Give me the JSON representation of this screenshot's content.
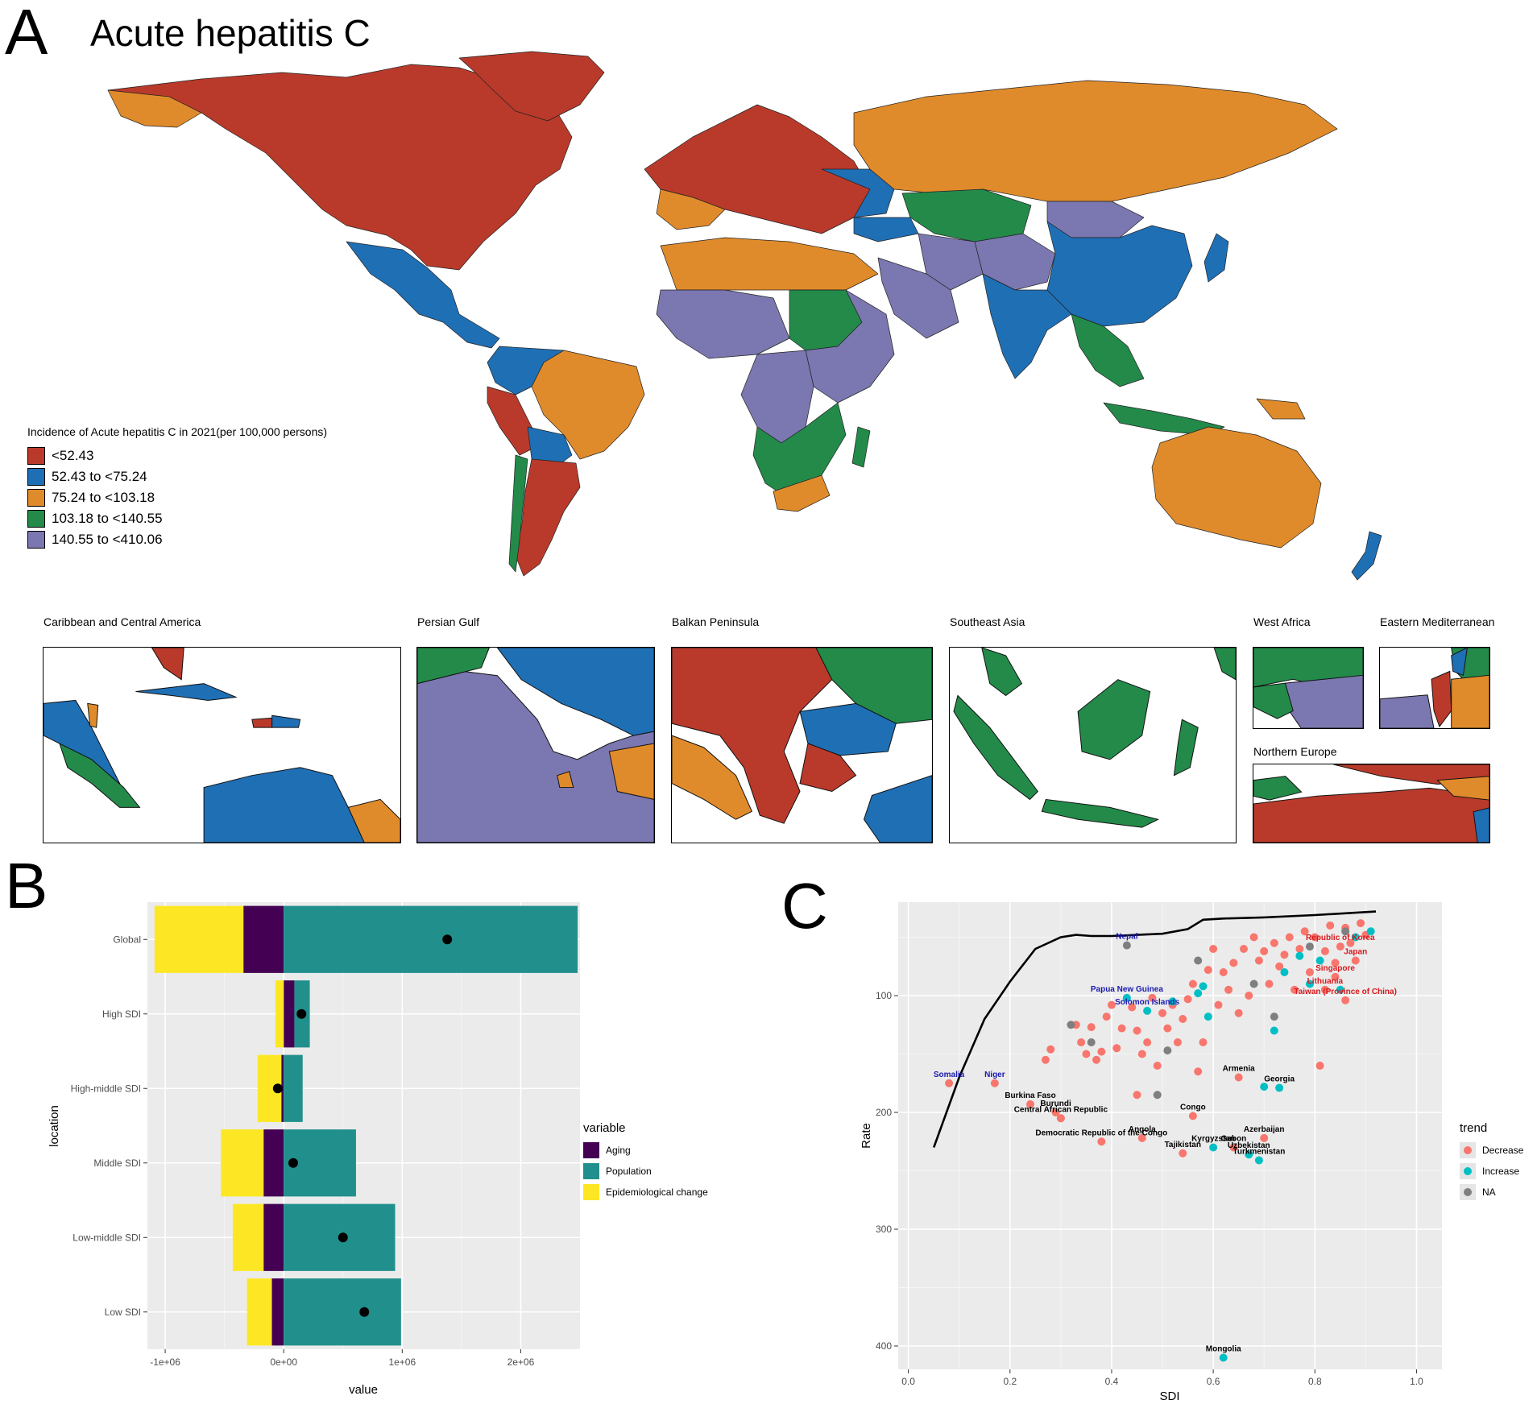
{
  "panel_a": {
    "letter": "A",
    "title": "Acute hepatitis C",
    "legend": {
      "title": "Incidence of Acute hepatitis C in 2021(per 100,000 persons)",
      "items": [
        {
          "label": "<52.43",
          "color": "#B93A2B"
        },
        {
          "label": "52.43 to <75.24",
          "color": "#1F6FB5"
        },
        {
          "label": "75.24 to <103.18",
          "color": "#E08B2B"
        },
        {
          "label": "103.18 to <140.55",
          "color": "#238A4A"
        },
        {
          "label": "140.55 to <410.06",
          "color": "#7B77B0"
        }
      ]
    },
    "insets": [
      {
        "title": "Caribbean and Central America"
      },
      {
        "title": "Persian Gulf"
      },
      {
        "title": "Balkan Peninsula"
      },
      {
        "title": "Southeast Asia"
      },
      {
        "title": "West Africa"
      },
      {
        "title": "Eastern Mediterranean"
      },
      {
        "title": "Northern Europe"
      }
    ]
  },
  "panel_b": {
    "letter": "B",
    "legend": {
      "title": "variable",
      "items": [
        {
          "label": "Aging",
          "color": "#440154"
        },
        {
          "label": "Population",
          "color": "#21908C"
        },
        {
          "label": "Epidemiological change",
          "color": "#FDE725"
        }
      ]
    }
  },
  "panel_c": {
    "letter": "C",
    "legend": {
      "title": "trend",
      "items": [
        {
          "label": "Decrease",
          "color": "#F8766D"
        },
        {
          "label": "Increase",
          "color": "#00BFC4"
        },
        {
          "label": "NA",
          "color": "#7F7F7F"
        }
      ]
    }
  },
  "chart_data": [
    {
      "type": "bar",
      "subtype": "stacked-horizontal-decomposition",
      "xlabel": "value",
      "ylabel": "location",
      "xlim": [
        -1150000,
        2500000
      ],
      "x_ticks": [
        -1000000,
        0,
        1000000,
        2000000
      ],
      "x_tick_labels": [
        "-1e+06",
        "0e+00",
        "1e+06",
        "2e+06"
      ],
      "categories": [
        "Global",
        "High SDI",
        "High-middle SDI",
        "Middle SDI",
        "Low-middle SDI",
        "Low SDI"
      ],
      "series": [
        {
          "name": "Aging",
          "values": [
            -340000,
            90000,
            -20000,
            -170000,
            -170000,
            -100000
          ]
        },
        {
          "name": "Epidemiological change",
          "values": [
            -750000,
            -70000,
            -200000,
            -360000,
            -260000,
            -210000
          ]
        },
        {
          "name": "Population",
          "values": [
            2480000,
            130000,
            160000,
            610000,
            940000,
            990000
          ]
        }
      ],
      "net_change": [
        1380000,
        150000,
        -50000,
        80000,
        500000,
        680000
      ],
      "grid": true,
      "legend_position": "right"
    },
    {
      "type": "scatter",
      "xlabel": "SDI",
      "ylabel": "Rate",
      "xlim": [
        -0.02,
        1.05
      ],
      "ylim": [
        420,
        20
      ],
      "x_ticks": [
        0.0,
        0.2,
        0.4,
        0.6,
        0.8,
        1.0
      ],
      "x_tick_labels": [
        "0.0",
        "0.2",
        "0.4",
        "0.6",
        "0.8",
        "1.0"
      ],
      "y_ticks": [
        100,
        200,
        300,
        400
      ],
      "y_tick_labels": [
        "100",
        "200",
        "300",
        "400"
      ],
      "y_reversed": true,
      "grid": true,
      "legend_position": "right",
      "expected_curve": {
        "x": [
          0.05,
          0.1,
          0.15,
          0.2,
          0.25,
          0.3,
          0.33,
          0.36,
          0.4,
          0.45,
          0.5,
          0.55,
          0.58,
          0.62,
          0.7,
          0.8,
          0.92
        ],
        "y": [
          230,
          170,
          120,
          88,
          60,
          50,
          48,
          49,
          49,
          48,
          47,
          43,
          35,
          34,
          33,
          31,
          28
        ]
      },
      "labeled_points": [
        {
          "label": "Somalia",
          "x": 0.08,
          "y": 175,
          "trend": "Decrease",
          "label_color": "#1A1AB0"
        },
        {
          "label": "Niger",
          "x": 0.17,
          "y": 175,
          "trend": "Decrease",
          "label_color": "#1A1AB0"
        },
        {
          "label": "Nepal",
          "x": 0.43,
          "y": 57,
          "trend": "NA",
          "label_color": "#1A1AB0"
        },
        {
          "label": "Papua New Guinea",
          "x": 0.43,
          "y": 102,
          "trend": "Increase",
          "label_color": "#1A1AB0"
        },
        {
          "label": "Solomon Islands",
          "x": 0.47,
          "y": 113,
          "trend": "Increase",
          "label_color": "#1A1AB0"
        },
        {
          "label": "Burkina Faso",
          "x": 0.24,
          "y": 193,
          "trend": "Decrease",
          "label_color": "#000000"
        },
        {
          "label": "Burundi",
          "x": 0.29,
          "y": 200,
          "trend": "Decrease",
          "label_color": "#000000"
        },
        {
          "label": "Central African Republic",
          "x": 0.3,
          "y": 205,
          "trend": "Decrease",
          "label_color": "#000000"
        },
        {
          "label": "Democratic Republic of the Congo",
          "x": 0.38,
          "y": 225,
          "trend": "Decrease",
          "label_color": "#000000"
        },
        {
          "label": "Angola",
          "x": 0.46,
          "y": 222,
          "trend": "Decrease",
          "label_color": "#000000"
        },
        {
          "label": "Congo",
          "x": 0.56,
          "y": 203,
          "trend": "Decrease",
          "label_color": "#000000"
        },
        {
          "label": "Kyrgyzstan",
          "x": 0.6,
          "y": 230,
          "trend": "Increase",
          "label_color": "#000000"
        },
        {
          "label": "Tajikistan",
          "x": 0.54,
          "y": 235,
          "trend": "Decrease",
          "label_color": "#000000"
        },
        {
          "label": "Gabon",
          "x": 0.64,
          "y": 230,
          "trend": "Decrease",
          "label_color": "#000000"
        },
        {
          "label": "Uzbekistan",
          "x": 0.67,
          "y": 236,
          "trend": "Increase",
          "label_color": "#000000"
        },
        {
          "label": "Turkmenistan",
          "x": 0.69,
          "y": 241,
          "trend": "Increase",
          "label_color": "#000000"
        },
        {
          "label": "Azerbaijan",
          "x": 0.7,
          "y": 222,
          "trend": "Decrease",
          "label_color": "#000000"
        },
        {
          "label": "Armenia",
          "x": 0.65,
          "y": 170,
          "trend": "Decrease",
          "label_color": "#000000"
        },
        {
          "label": "Georgia",
          "x": 0.73,
          "y": 179,
          "trend": "Increase",
          "label_color": "#000000"
        },
        {
          "label": "Mongolia",
          "x": 0.62,
          "y": 410,
          "trend": "Increase",
          "label_color": "#000000"
        },
        {
          "label": "Republic of Korea",
          "x": 0.85,
          "y": 58,
          "trend": "Decrease",
          "label_color": "#D7191C"
        },
        {
          "label": "Japan",
          "x": 0.88,
          "y": 70,
          "trend": "Decrease",
          "label_color": "#D7191C"
        },
        {
          "label": "Singapore",
          "x": 0.84,
          "y": 84,
          "trend": "Decrease",
          "label_color": "#D7191C"
        },
        {
          "label": "Lithuania",
          "x": 0.82,
          "y": 95,
          "trend": "Decrease",
          "label_color": "#D7191C"
        },
        {
          "label": "Taiwan (Province of China)",
          "x": 0.86,
          "y": 104,
          "trend": "Decrease",
          "label_color": "#D7191C"
        }
      ],
      "points": [
        {
          "x": 0.27,
          "y": 155,
          "trend": "Decrease"
        },
        {
          "x": 0.28,
          "y": 146,
          "trend": "Decrease"
        },
        {
          "x": 0.3,
          "y": 205,
          "trend": "Decrease"
        },
        {
          "x": 0.33,
          "y": 125,
          "trend": "Decrease"
        },
        {
          "x": 0.34,
          "y": 140,
          "trend": "Decrease"
        },
        {
          "x": 0.35,
          "y": 150,
          "trend": "Decrease"
        },
        {
          "x": 0.36,
          "y": 127,
          "trend": "Decrease"
        },
        {
          "x": 0.37,
          "y": 155,
          "trend": "Decrease"
        },
        {
          "x": 0.38,
          "y": 148,
          "trend": "Decrease"
        },
        {
          "x": 0.39,
          "y": 118,
          "trend": "Decrease"
        },
        {
          "x": 0.4,
          "y": 108,
          "trend": "Decrease"
        },
        {
          "x": 0.41,
          "y": 145,
          "trend": "Decrease"
        },
        {
          "x": 0.42,
          "y": 128,
          "trend": "Decrease"
        },
        {
          "x": 0.44,
          "y": 110,
          "trend": "Decrease"
        },
        {
          "x": 0.45,
          "y": 130,
          "trend": "Decrease"
        },
        {
          "x": 0.45,
          "y": 185,
          "trend": "Decrease"
        },
        {
          "x": 0.46,
          "y": 150,
          "trend": "Decrease"
        },
        {
          "x": 0.47,
          "y": 140,
          "trend": "Decrease"
        },
        {
          "x": 0.48,
          "y": 102,
          "trend": "Decrease"
        },
        {
          "x": 0.49,
          "y": 160,
          "trend": "Decrease"
        },
        {
          "x": 0.5,
          "y": 115,
          "trend": "Decrease"
        },
        {
          "x": 0.51,
          "y": 128,
          "trend": "Decrease"
        },
        {
          "x": 0.52,
          "y": 108,
          "trend": "Decrease"
        },
        {
          "x": 0.53,
          "y": 140,
          "trend": "Decrease"
        },
        {
          "x": 0.54,
          "y": 120,
          "trend": "Decrease"
        },
        {
          "x": 0.55,
          "y": 103,
          "trend": "Decrease"
        },
        {
          "x": 0.56,
          "y": 90,
          "trend": "Decrease"
        },
        {
          "x": 0.57,
          "y": 165,
          "trend": "Decrease"
        },
        {
          "x": 0.58,
          "y": 140,
          "trend": "Decrease"
        },
        {
          "x": 0.59,
          "y": 78,
          "trend": "Decrease"
        },
        {
          "x": 0.6,
          "y": 60,
          "trend": "Decrease"
        },
        {
          "x": 0.61,
          "y": 108,
          "trend": "Decrease"
        },
        {
          "x": 0.62,
          "y": 80,
          "trend": "Decrease"
        },
        {
          "x": 0.63,
          "y": 95,
          "trend": "Decrease"
        },
        {
          "x": 0.64,
          "y": 72,
          "trend": "Decrease"
        },
        {
          "x": 0.65,
          "y": 115,
          "trend": "Decrease"
        },
        {
          "x": 0.66,
          "y": 60,
          "trend": "Decrease"
        },
        {
          "x": 0.67,
          "y": 100,
          "trend": "Decrease"
        },
        {
          "x": 0.68,
          "y": 50,
          "trend": "Decrease"
        },
        {
          "x": 0.69,
          "y": 70,
          "trend": "Decrease"
        },
        {
          "x": 0.7,
          "y": 62,
          "trend": "Decrease"
        },
        {
          "x": 0.71,
          "y": 90,
          "trend": "Decrease"
        },
        {
          "x": 0.72,
          "y": 55,
          "trend": "Decrease"
        },
        {
          "x": 0.73,
          "y": 75,
          "trend": "Decrease"
        },
        {
          "x": 0.74,
          "y": 65,
          "trend": "Decrease"
        },
        {
          "x": 0.75,
          "y": 50,
          "trend": "Decrease"
        },
        {
          "x": 0.76,
          "y": 95,
          "trend": "Decrease"
        },
        {
          "x": 0.77,
          "y": 60,
          "trend": "Decrease"
        },
        {
          "x": 0.78,
          "y": 45,
          "trend": "Decrease"
        },
        {
          "x": 0.79,
          "y": 80,
          "trend": "Decrease"
        },
        {
          "x": 0.8,
          "y": 50,
          "trend": "Decrease"
        },
        {
          "x": 0.81,
          "y": 160,
          "trend": "Decrease"
        },
        {
          "x": 0.82,
          "y": 62,
          "trend": "Decrease"
        },
        {
          "x": 0.83,
          "y": 40,
          "trend": "Decrease"
        },
        {
          "x": 0.84,
          "y": 72,
          "trend": "Decrease"
        },
        {
          "x": 0.86,
          "y": 42,
          "trend": "Decrease"
        },
        {
          "x": 0.87,
          "y": 55,
          "trend": "Decrease"
        },
        {
          "x": 0.89,
          "y": 38,
          "trend": "Decrease"
        },
        {
          "x": 0.9,
          "y": 48,
          "trend": "Decrease"
        },
        {
          "x": 0.52,
          "y": 105,
          "trend": "Increase"
        },
        {
          "x": 0.57,
          "y": 98,
          "trend": "Increase"
        },
        {
          "x": 0.58,
          "y": 92,
          "trend": "Increase"
        },
        {
          "x": 0.59,
          "y": 118,
          "trend": "Increase"
        },
        {
          "x": 0.7,
          "y": 178,
          "trend": "Increase"
        },
        {
          "x": 0.72,
          "y": 130,
          "trend": "Increase"
        },
        {
          "x": 0.74,
          "y": 80,
          "trend": "Increase"
        },
        {
          "x": 0.77,
          "y": 66,
          "trend": "Increase"
        },
        {
          "x": 0.79,
          "y": 90,
          "trend": "Increase"
        },
        {
          "x": 0.81,
          "y": 70,
          "trend": "Increase"
        },
        {
          "x": 0.85,
          "y": 95,
          "trend": "Increase"
        },
        {
          "x": 0.88,
          "y": 50,
          "trend": "Increase"
        },
        {
          "x": 0.91,
          "y": 45,
          "trend": "Increase"
        },
        {
          "x": 0.32,
          "y": 125,
          "trend": "NA"
        },
        {
          "x": 0.36,
          "y": 140,
          "trend": "NA"
        },
        {
          "x": 0.49,
          "y": 185,
          "trend": "NA"
        },
        {
          "x": 0.51,
          "y": 147,
          "trend": "NA"
        },
        {
          "x": 0.57,
          "y": 70,
          "trend": "NA"
        },
        {
          "x": 0.68,
          "y": 90,
          "trend": "NA"
        },
        {
          "x": 0.72,
          "y": 118,
          "trend": "NA"
        },
        {
          "x": 0.79,
          "y": 58,
          "trend": "NA"
        },
        {
          "x": 0.86,
          "y": 45,
          "trend": "NA"
        }
      ]
    }
  ]
}
